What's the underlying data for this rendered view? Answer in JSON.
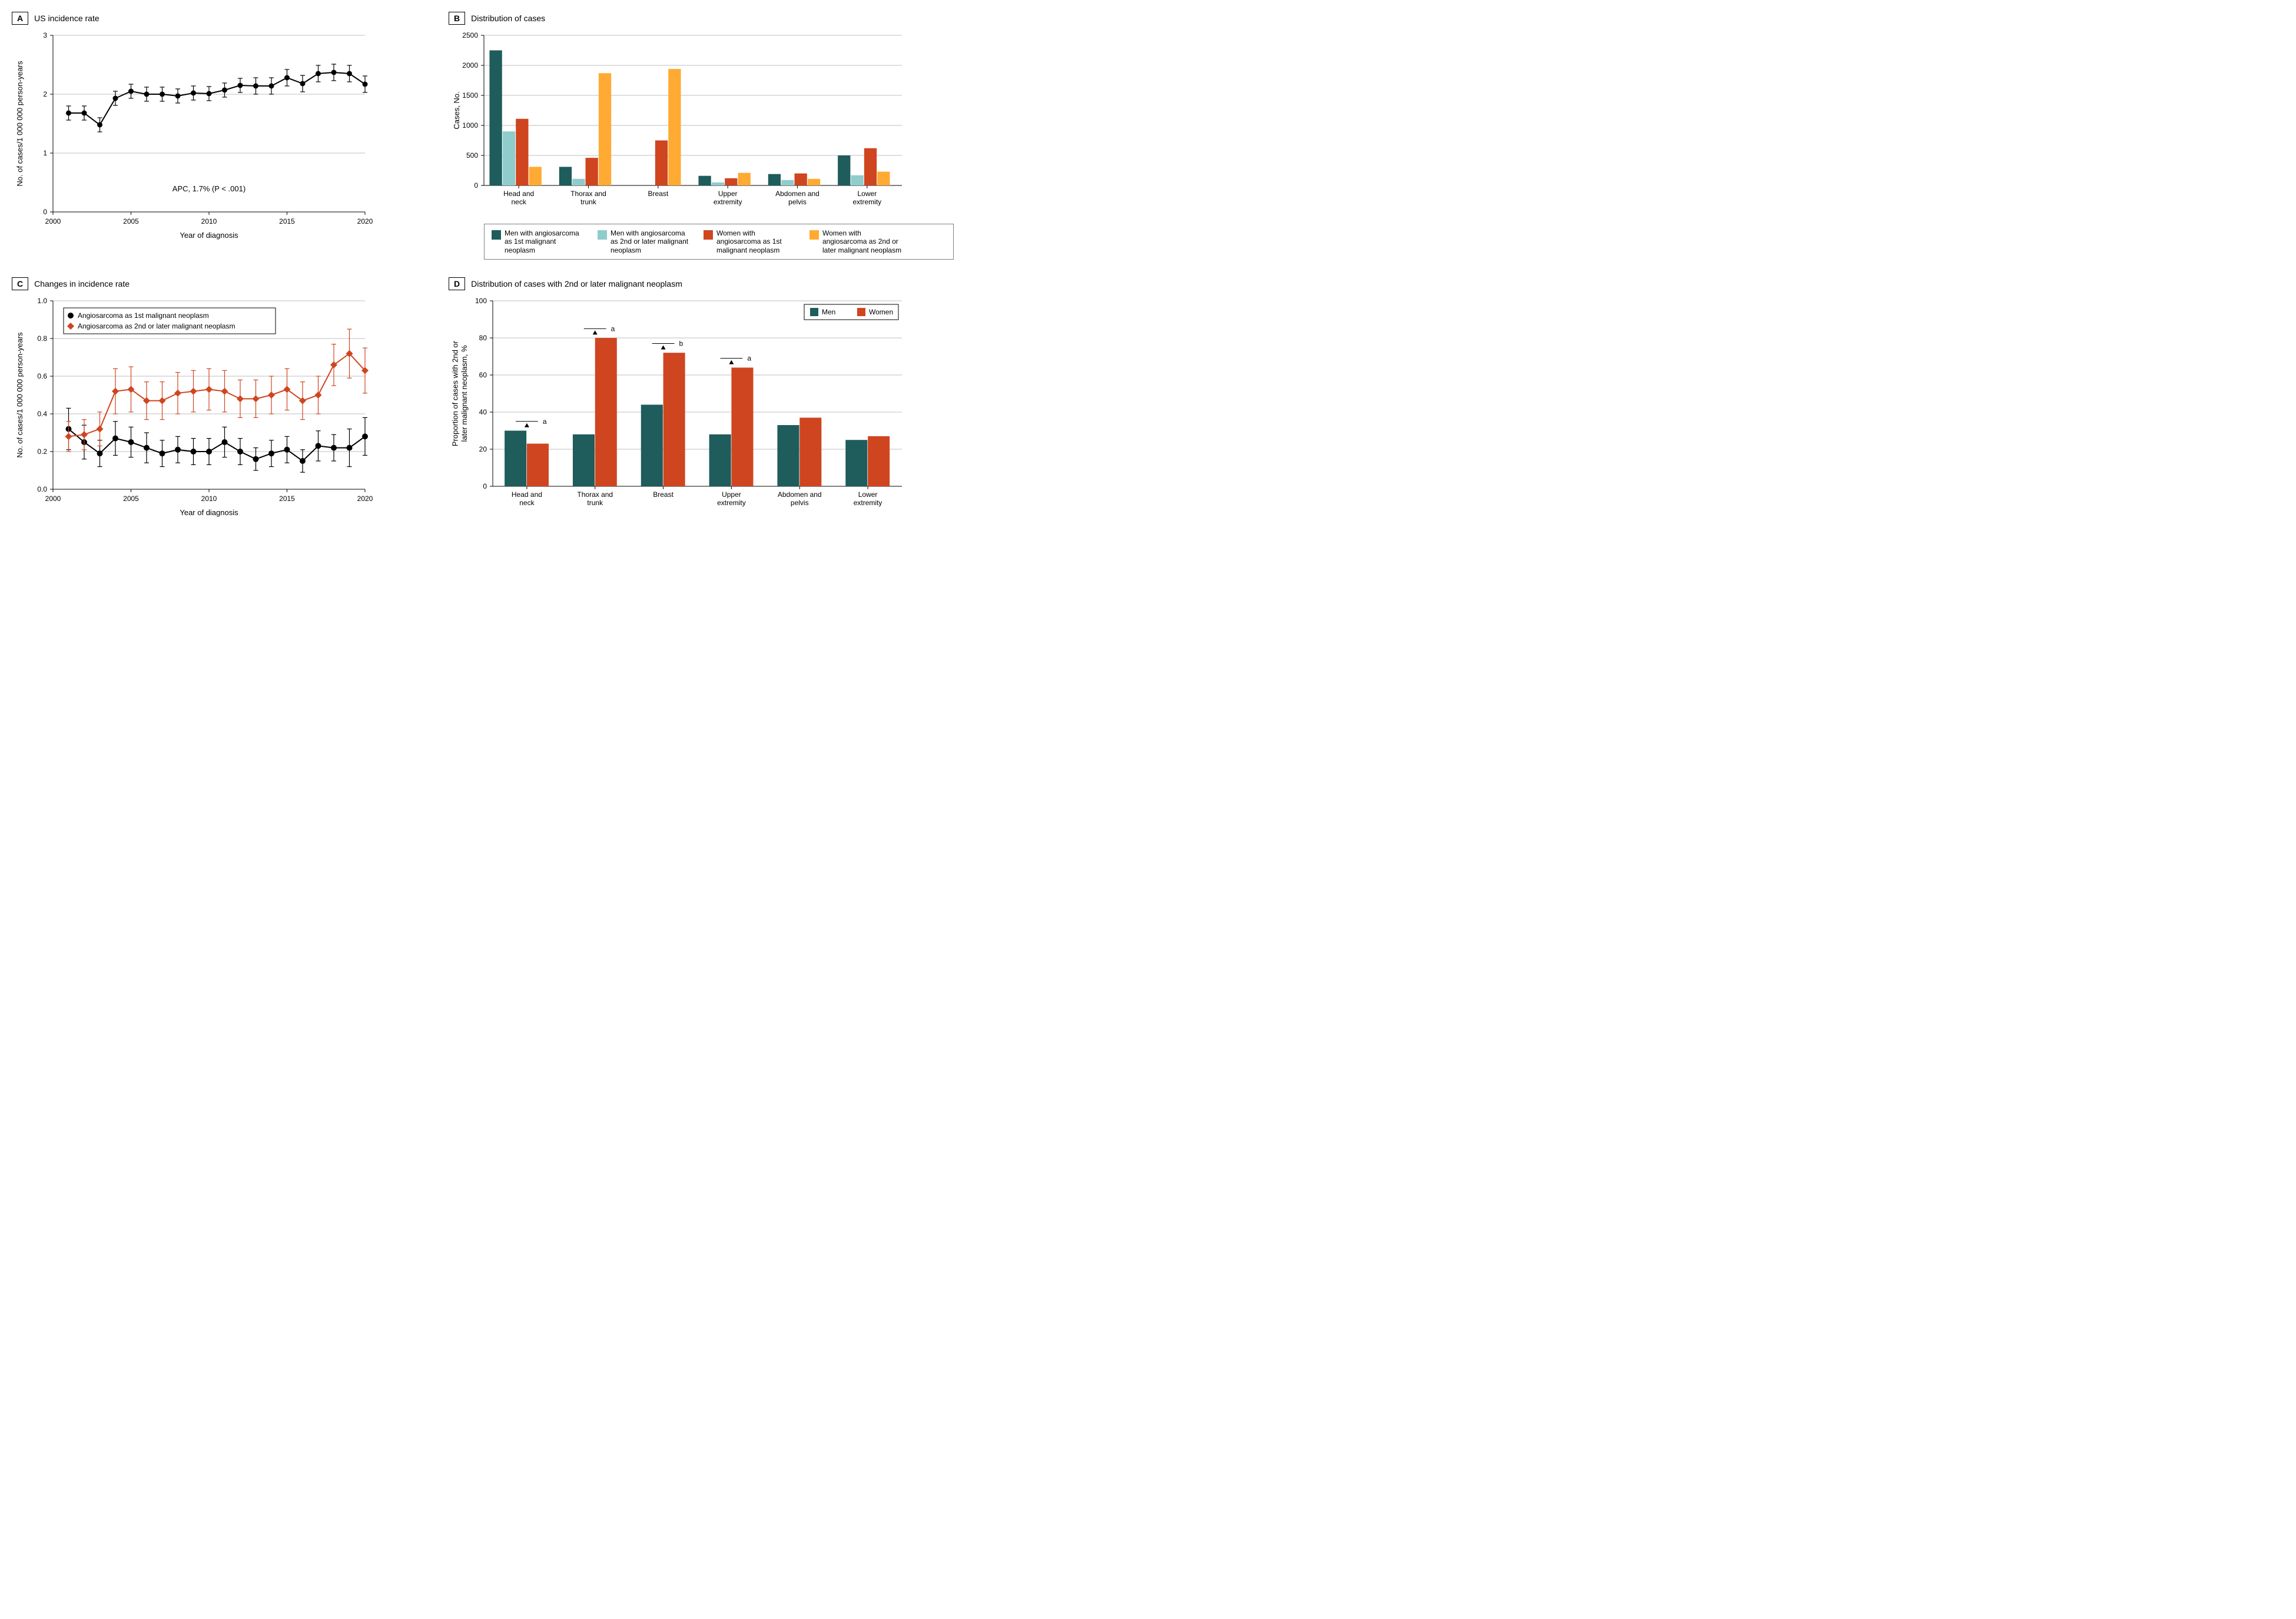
{
  "colors": {
    "black": "#000000",
    "grid": "#bfbfbf",
    "orange_red": "#cf4520",
    "dark_teal": "#1f5c5c",
    "light_teal": "#8fcccc",
    "orange_dark": "#cf4520",
    "orange_light": "#ffaa33",
    "bg": "#ffffff"
  },
  "panelA": {
    "letter": "A",
    "title": "US incidence rate",
    "xlabel": "Year of diagnosis",
    "ylabel": "No. of cases/1 000 000 person-years",
    "annotation": "APC, 1.7% (P < .001)",
    "xlim": [
      2000,
      2020
    ],
    "ylim": [
      0,
      3
    ],
    "xticks": [
      2000,
      2005,
      2010,
      2015,
      2020
    ],
    "yticks": [
      0,
      1,
      2,
      3
    ],
    "marker_radius": 4.5,
    "line_width": 2,
    "years": [
      2001,
      2002,
      2003,
      2004,
      2005,
      2006,
      2007,
      2008,
      2009,
      2010,
      2011,
      2012,
      2013,
      2014,
      2015,
      2016,
      2017,
      2018,
      2019,
      2020
    ],
    "values": [
      1.68,
      1.68,
      1.48,
      1.93,
      2.05,
      2.0,
      2.0,
      1.97,
      2.02,
      2.01,
      2.07,
      2.15,
      2.14,
      2.14,
      2.28,
      2.18,
      2.35,
      2.37,
      2.35,
      2.17
    ],
    "err": [
      0.12,
      0.12,
      0.12,
      0.12,
      0.12,
      0.12,
      0.12,
      0.12,
      0.12,
      0.12,
      0.12,
      0.12,
      0.14,
      0.14,
      0.14,
      0.14,
      0.14,
      0.14,
      0.14,
      0.14
    ]
  },
  "panelB": {
    "letter": "B",
    "title": "Distribution of cases",
    "ylabel": "Cases, No.",
    "ylim": [
      0,
      2500
    ],
    "yticks": [
      0,
      500,
      1000,
      1500,
      2000,
      2500
    ],
    "categories": [
      "Head and neck",
      "Thorax and trunk",
      "Breast",
      "Upper extremity",
      "Abdomen and pelvis",
      "Lower extremity"
    ],
    "series": [
      {
        "key": "men_1st",
        "label": "Men with angiosarcoma as 1st malignant neoplasm",
        "color": "#1f5c5c",
        "values": [
          2250,
          310,
          0,
          160,
          190,
          500
        ]
      },
      {
        "key": "men_2nd",
        "label": "Men with angiosarcoma as 2nd or later malignant neoplasm",
        "color": "#8fcccc",
        "values": [
          900,
          110,
          0,
          50,
          90,
          170
        ]
      },
      {
        "key": "women_1st",
        "label": "Women with angiosarcoma as 1st malignant neoplasm",
        "color": "#cf4520",
        "values": [
          1110,
          460,
          750,
          120,
          200,
          620
        ]
      },
      {
        "key": "women_2nd",
        "label": "Women with angiosarcoma as 2nd or later malignant neoplasm",
        "color": "#ffaa33",
        "values": [
          310,
          1870,
          1940,
          210,
          110,
          230
        ]
      }
    ],
    "bar_width": 0.18,
    "group_gap": 0.15
  },
  "panelC": {
    "letter": "C",
    "title": "Changes in incidence rate",
    "xlabel": "Year of diagnosis",
    "ylabel": "No. of cases/1 000 000 person-years",
    "xlim": [
      2000,
      2020
    ],
    "ylim": [
      0,
      1.0
    ],
    "xticks": [
      2000,
      2005,
      2010,
      2015,
      2020
    ],
    "yticks": [
      0,
      0.2,
      0.4,
      0.6,
      0.8,
      1.0
    ],
    "marker_radius": 5,
    "line_width": 2,
    "years": [
      2001,
      2002,
      2003,
      2004,
      2005,
      2006,
      2007,
      2008,
      2009,
      2010,
      2011,
      2012,
      2013,
      2014,
      2015,
      2016,
      2017,
      2018,
      2019,
      2020
    ],
    "series1": {
      "label": "Angiosarcoma as 1st malignant neoplasm",
      "color": "#000000",
      "marker": "circle",
      "values": [
        0.32,
        0.25,
        0.19,
        0.27,
        0.25,
        0.22,
        0.19,
        0.21,
        0.2,
        0.2,
        0.25,
        0.2,
        0.16,
        0.19,
        0.21,
        0.15,
        0.23,
        0.22,
        0.22,
        0.28
      ],
      "err": [
        0.11,
        0.09,
        0.07,
        0.09,
        0.08,
        0.08,
        0.07,
        0.07,
        0.07,
        0.07,
        0.08,
        0.07,
        0.06,
        0.07,
        0.07,
        0.06,
        0.08,
        0.07,
        0.1,
        0.1
      ]
    },
    "series2": {
      "label": "Angiosarcoma as 2nd or later malignant neoplasm",
      "color": "#cf4520",
      "marker": "diamond",
      "values": [
        0.28,
        0.29,
        0.32,
        0.52,
        0.53,
        0.47,
        0.47,
        0.51,
        0.52,
        0.53,
        0.52,
        0.48,
        0.48,
        0.5,
        0.53,
        0.47,
        0.5,
        0.66,
        0.72,
        0.63
      ],
      "err": [
        0.08,
        0.08,
        0.09,
        0.12,
        0.12,
        0.1,
        0.1,
        0.11,
        0.11,
        0.11,
        0.11,
        0.1,
        0.1,
        0.1,
        0.11,
        0.1,
        0.1,
        0.11,
        0.13,
        0.12
      ]
    }
  },
  "panelD": {
    "letter": "D",
    "title": "Distribution of cases with 2nd or later malignant neoplasm",
    "ylabel": "Proportion of cases with 2nd or later malignant neoplasm, %",
    "ylim": [
      0,
      100
    ],
    "yticks": [
      0,
      20,
      40,
      60,
      80,
      100
    ],
    "categories": [
      "Head and neck",
      "Thorax and trunk",
      "Breast",
      "Upper extremity",
      "Abdomen and pelvis",
      "Lower extremity"
    ],
    "series": [
      {
        "key": "men",
        "label": "Men",
        "color": "#1f5c5c",
        "values": [
          30,
          28,
          44,
          28,
          33,
          25
        ]
      },
      {
        "key": "women",
        "label": "Women",
        "color": "#cf4520",
        "values": [
          23,
          80,
          72,
          64,
          37,
          27
        ]
      }
    ],
    "bar_width": 0.32,
    "annotations": [
      {
        "cat_index": 0,
        "letter": "a",
        "y": 35
      },
      {
        "cat_index": 1,
        "letter": "a",
        "y": 85
      },
      {
        "cat_index": 2,
        "letter": "b",
        "y": 77
      },
      {
        "cat_index": 3,
        "letter": "a",
        "y": 69
      }
    ]
  }
}
